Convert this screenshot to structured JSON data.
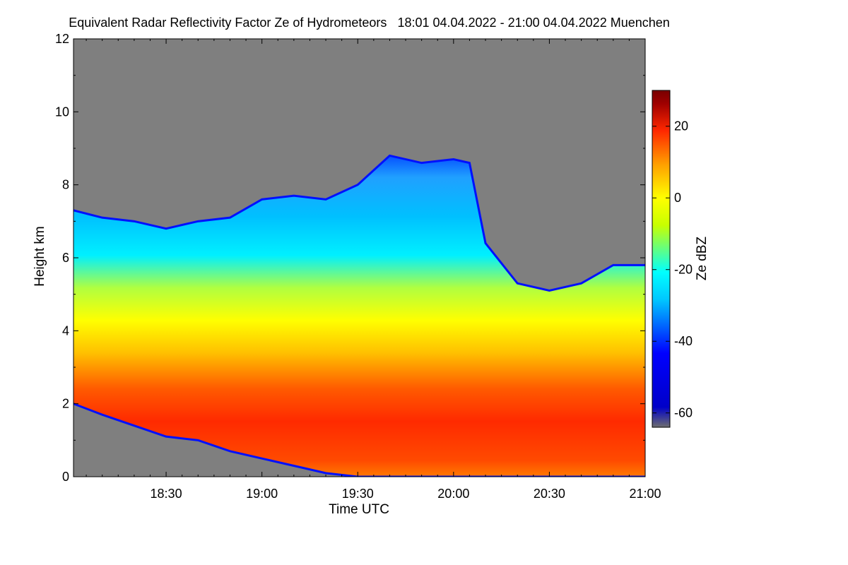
{
  "chart_data": {
    "type": "heatmap",
    "title": "Equivalent Radar Reflectivity Factor Ze of Hydrometeors",
    "subtitle": "18:01 04.04.2022 - 21:00 04.04.2022 Muenchen",
    "xlabel": "Time UTC",
    "ylabel": "Height km",
    "x_ticks": [
      "18:30",
      "19:00",
      "19:30",
      "20:00",
      "20:30",
      "21:00"
    ],
    "x_tick_minutes": [
      30,
      60,
      90,
      120,
      150,
      180
    ],
    "xlim_minutes": [
      1,
      180
    ],
    "y_ticks": [
      "0",
      "2",
      "4",
      "6",
      "8",
      "10",
      "12"
    ],
    "ylim": [
      0,
      12
    ],
    "background_color": "#7f7f7f",
    "colorbar": {
      "label": "Ze dBZ",
      "ticks": [
        "20",
        "0",
        "-20",
        "-40",
        "-60"
      ],
      "tick_values": [
        20,
        0,
        -20,
        -40,
        -60
      ],
      "range": [
        -64,
        30
      ],
      "colors": [
        "#6e6e6e",
        "#0000c8",
        "#0000ff",
        "#00c8ff",
        "#00ffff",
        "#c8ff00",
        "#ffff00",
        "#ffa000",
        "#ff2800",
        "#a00000",
        "#780000"
      ]
    },
    "echo_top_km": [
      [
        1,
        7.3
      ],
      [
        10,
        7.1
      ],
      [
        20,
        7.0
      ],
      [
        30,
        6.8
      ],
      [
        40,
        7.0
      ],
      [
        50,
        7.1
      ],
      [
        60,
        7.6
      ],
      [
        70,
        7.7
      ],
      [
        80,
        7.6
      ],
      [
        90,
        8.0
      ],
      [
        95,
        8.4
      ],
      [
        100,
        8.8
      ],
      [
        110,
        8.6
      ],
      [
        120,
        8.7
      ],
      [
        125,
        8.6
      ],
      [
        130,
        6.4
      ],
      [
        140,
        5.3
      ],
      [
        150,
        5.1
      ],
      [
        160,
        5.3
      ],
      [
        170,
        5.8
      ],
      [
        180,
        5.8
      ]
    ],
    "echo_base_km": [
      [
        1,
        2.0
      ],
      [
        10,
        1.7
      ],
      [
        20,
        1.4
      ],
      [
        30,
        1.1
      ],
      [
        40,
        1.0
      ],
      [
        50,
        0.7
      ],
      [
        60,
        0.5
      ],
      [
        70,
        0.3
      ],
      [
        80,
        0.1
      ],
      [
        90,
        0.0
      ],
      [
        180,
        0.0
      ]
    ],
    "ze_profile": [
      {
        "height_km": 0.3,
        "ze_dbz": 16
      },
      {
        "height_km": 1.0,
        "ze_dbz": 20
      },
      {
        "height_km": 2.0,
        "ze_dbz": 22
      },
      {
        "height_km": 3.0,
        "ze_dbz": 17
      },
      {
        "height_km": 4.0,
        "ze_dbz": 7
      },
      {
        "height_km": 5.0,
        "ze_dbz": -3
      },
      {
        "height_km": 6.0,
        "ze_dbz": -14
      },
      {
        "height_km": 7.0,
        "ze_dbz": -24
      },
      {
        "height_km": 8.0,
        "ze_dbz": -30
      },
      {
        "height_km": 8.8,
        "ze_dbz": -35
      }
    ]
  }
}
